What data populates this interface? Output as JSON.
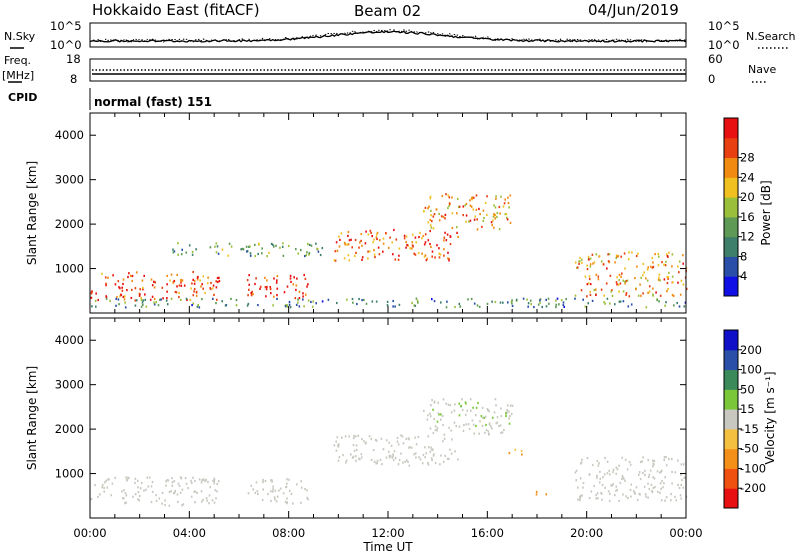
{
  "header": {
    "radar": "Hokkaido East (fitACF)",
    "beam": "Beam 02",
    "date": "04/Jun/2019"
  },
  "noise_panel": {
    "left_label": "N.Sky",
    "right_label": "N.Search",
    "left_ticks": [
      "10^5",
      "10^0"
    ],
    "right_ticks": [
      "10^5",
      "10^0"
    ]
  },
  "freq_panel": {
    "left_label": "Freq.",
    "left_unit": "[MHz]",
    "left_ticks": [
      "18",
      "8"
    ],
    "right_label": "Nave",
    "right_ticks": [
      "60",
      "0"
    ]
  },
  "cpid_panel": {
    "label": "CPID",
    "value": "normal (fast) 151"
  },
  "colors": {
    "power": [
      "#1010e6",
      "#2a4fa8",
      "#3d7f6a",
      "#5e9a55",
      "#9abf3a",
      "#f0c020",
      "#f08a10",
      "#e84010",
      "#e81010"
    ],
    "velocity": [
      "#e81010",
      "#f05010",
      "#f49018",
      "#f4c040",
      "#c8c8c0",
      "#7ac83a",
      "#3a8a5a",
      "#2a4fa8",
      "#1010c8"
    ],
    "background": "#ffffff"
  },
  "chart_data": [
    {
      "type": "heatmap",
      "panel": "power",
      "ylabel": "Slant Range [km]",
      "yticks": [
        "1000",
        "2000",
        "3000",
        "4000"
      ],
      "ylim": [
        0,
        4500
      ],
      "colorbar_label": "Power [dB]",
      "colorbar_ticks": [
        "4",
        "8",
        "12",
        "16",
        "20",
        "24",
        "28"
      ],
      "x": [
        "00:00",
        "04:00",
        "08:00",
        "12:00",
        "16:00",
        "20:00",
        "00:00"
      ],
      "xlim_hours": [
        0,
        24
      ],
      "scatter_regions": [
        {
          "t": [
            0.0,
            5.2
          ],
          "r": [
            300,
            950
          ],
          "power": 26
        },
        {
          "t": [
            6.3,
            8.8
          ],
          "r": [
            350,
            900
          ],
          "power": 30
        },
        {
          "t": [
            9.8,
            14.8
          ],
          "r": [
            1200,
            1900
          ],
          "power": 25
        },
        {
          "t": [
            13.4,
            17.0
          ],
          "r": [
            1900,
            2700
          ],
          "power": 22
        },
        {
          "t": [
            19.5,
            24.0
          ],
          "r": [
            400,
            1400
          ],
          "power": 22
        },
        {
          "t": [
            3.2,
            9.5
          ],
          "r": [
            1300,
            1600
          ],
          "power": 12
        },
        {
          "t": [
            0.0,
            24.0
          ],
          "r": [
            150,
            350
          ],
          "power": 10
        }
      ]
    },
    {
      "type": "heatmap",
      "panel": "velocity",
      "ylabel": "Slant Range [km]",
      "yticks": [
        "1000",
        "2000",
        "3000",
        "4000"
      ],
      "ylim": [
        0,
        4500
      ],
      "colorbar_label": "Velocity [m s⁻¹]",
      "colorbar_ticks": [
        "200",
        "100",
        "50",
        "15",
        "-15",
        "-50",
        "-100",
        "-200"
      ],
      "xlabel": "Time UT",
      "x": [
        "00:00",
        "04:00",
        "08:00",
        "12:00",
        "16:00",
        "20:00",
        "00:00"
      ],
      "xlim_hours": [
        0,
        24
      ],
      "scatter_regions": [
        {
          "t": [
            0.0,
            5.2
          ],
          "r": [
            300,
            950
          ],
          "velocity": 0
        },
        {
          "t": [
            6.3,
            8.8
          ],
          "r": [
            350,
            900
          ],
          "velocity": 0
        },
        {
          "t": [
            9.8,
            14.8
          ],
          "r": [
            1200,
            1900
          ],
          "velocity": 0
        },
        {
          "t": [
            13.4,
            17.0
          ],
          "r": [
            1900,
            2700
          ],
          "velocity": 5
        },
        {
          "t": [
            19.5,
            24.0
          ],
          "r": [
            400,
            1400
          ],
          "velocity": 0
        },
        {
          "t": [
            14.6,
            15.6
          ],
          "r": [
            2500,
            2700
          ],
          "velocity": 40
        },
        {
          "t": [
            17.8,
            18.4
          ],
          "r": [
            550,
            700
          ],
          "velocity": -60
        },
        {
          "t": [
            16.8,
            17.6
          ],
          "r": [
            1450,
            1600
          ],
          "velocity": -60
        }
      ]
    }
  ]
}
